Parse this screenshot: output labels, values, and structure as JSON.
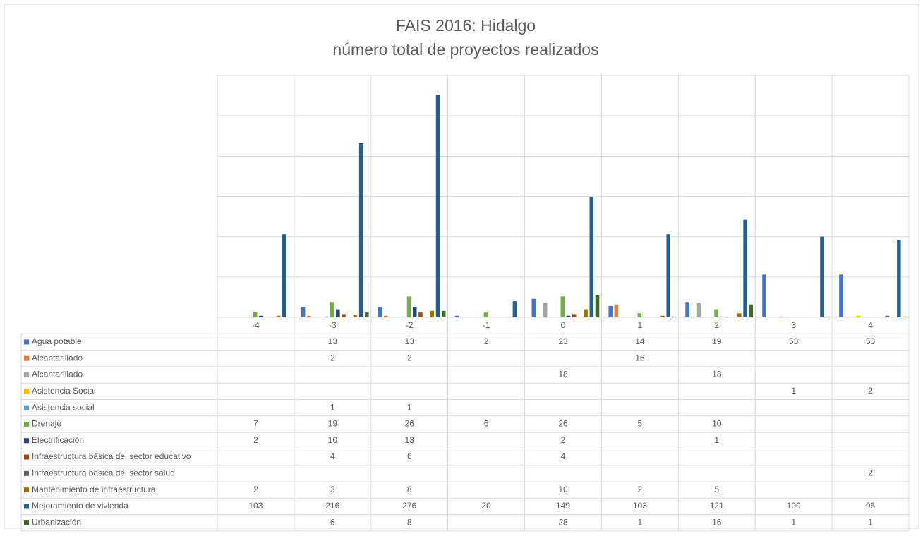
{
  "chart_data": {
    "type": "bar",
    "title": "FAIS 2016: Hidalgo",
    "subtitle": "número total de proyectos realizados",
    "categories": [
      -4,
      -3,
      -2,
      -1,
      0,
      1,
      2,
      3,
      4
    ],
    "ylim": [
      0,
      300
    ],
    "yticks": [
      0,
      50,
      100,
      150,
      200,
      250,
      300
    ],
    "grid": true,
    "series": [
      {
        "name": "Agua potable",
        "color": "#4472c4",
        "values": [
          null,
          13,
          13,
          2,
          23,
          14,
          19,
          53,
          53
        ]
      },
      {
        "name": "Alcantarillado",
        "color": "#ed7d31",
        "values": [
          null,
          2,
          2,
          null,
          null,
          16,
          null,
          null,
          null
        ]
      },
      {
        "name": "Alcantarillado",
        "color": "#a5a5a5",
        "values": [
          null,
          null,
          null,
          null,
          18,
          null,
          18,
          null,
          null
        ]
      },
      {
        "name": "Asistencia Social",
        "color": "#ffc000",
        "values": [
          null,
          null,
          null,
          null,
          null,
          null,
          null,
          1,
          2
        ]
      },
      {
        "name": "Asistencia social",
        "color": "#5b9bd5",
        "values": [
          null,
          1,
          1,
          null,
          null,
          null,
          null,
          null,
          null
        ]
      },
      {
        "name": "Drenaje",
        "color": "#70ad47",
        "values": [
          7,
          19,
          26,
          6,
          26,
          5,
          10,
          null,
          null
        ]
      },
      {
        "name": "Electrificación",
        "color": "#264478",
        "values": [
          2,
          10,
          13,
          null,
          2,
          null,
          1,
          null,
          null
        ]
      },
      {
        "name": "Infraestructura básica del sector educativo",
        "color": "#9e480e",
        "values": [
          null,
          4,
          6,
          null,
          4,
          null,
          null,
          null,
          null
        ]
      },
      {
        "name": "Infraestructura básica del sector salud",
        "color": "#636363",
        "values": [
          null,
          null,
          null,
          null,
          null,
          null,
          null,
          null,
          2
        ]
      },
      {
        "name": "Mantenimiento de infraestructura",
        "color": "#997300",
        "values": [
          2,
          3,
          8,
          null,
          10,
          2,
          5,
          null,
          null
        ]
      },
      {
        "name": "Mejoramiento de vivienda",
        "color": "#255e91",
        "values": [
          103,
          216,
          276,
          20,
          149,
          103,
          121,
          100,
          96
        ]
      },
      {
        "name": "Urbanización",
        "color": "#43682b",
        "values": [
          null,
          6,
          8,
          null,
          28,
          1,
          16,
          1,
          1
        ]
      }
    ]
  }
}
